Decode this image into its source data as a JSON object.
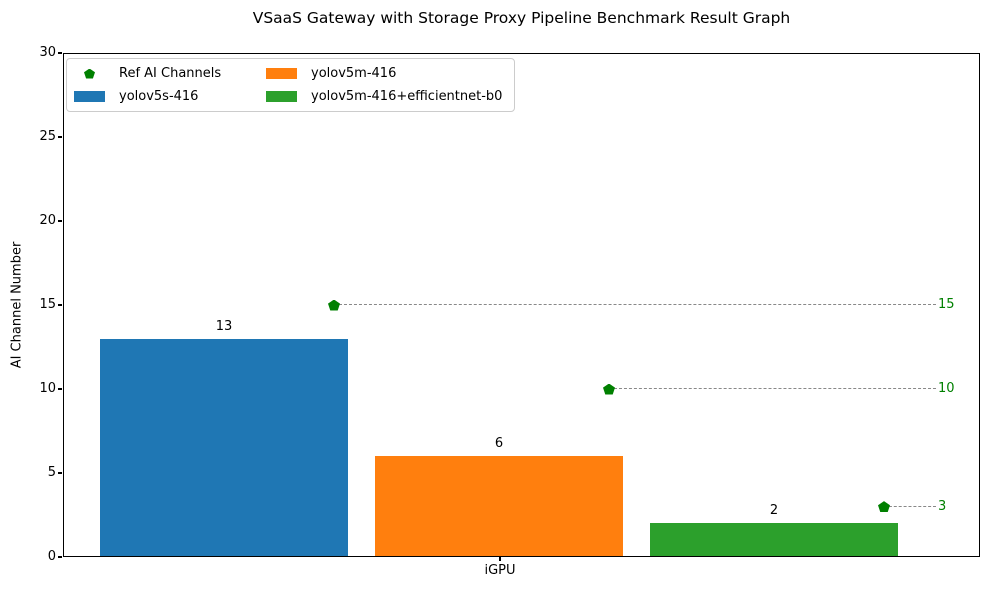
{
  "figure": {
    "title": "VSaaS Gateway with Storage Proxy Pipeline Benchmark Result Graph"
  },
  "chart_data": {
    "type": "bar",
    "title": "VSaaS Gateway with Storage Proxy Pipeline Benchmark Result Graph",
    "xlabel": "",
    "ylabel": "AI Channel Number",
    "categories": [
      "iGPU"
    ],
    "series": [
      {
        "name": "yolov5s-416",
        "color": "#1f77b4",
        "values": [
          13
        ]
      },
      {
        "name": "yolov5m-416",
        "color": "#ff7f0e",
        "values": [
          6
        ]
      },
      {
        "name": "yolov5m-416+efficientnet-b0",
        "color": "#2ca02c",
        "values": [
          2
        ]
      }
    ],
    "bar_value_labels": [
      "13",
      "6",
      "2"
    ],
    "ref_markers": {
      "name": "Ref AI Channels",
      "marker": "pentagon",
      "color": "#008000",
      "values": [
        15,
        10,
        3
      ],
      "labels": [
        "15",
        "10",
        "3"
      ],
      "line_style": "dashed",
      "line_color": "#888888"
    },
    "ylim": [
      0,
      30
    ],
    "yticks": [
      0,
      5,
      10,
      15,
      20,
      25,
      30
    ],
    "legend_position": "upper left",
    "grid": false
  }
}
